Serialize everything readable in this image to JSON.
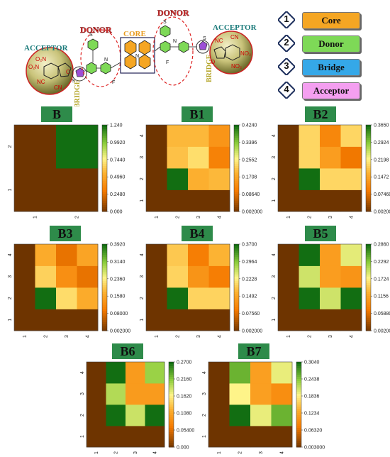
{
  "diagram": {
    "labels": {
      "acceptor_left": "ACCEPTOR",
      "donor_left": "DONOR",
      "core": "CORE",
      "donor_right": "DONOR",
      "acceptor_right": "ACCEPTOR",
      "bridge_left": "BRIDGE",
      "bridge_right": "BRIDGE"
    },
    "atoms": {
      "left_no2_a": "O₂N",
      "left_no2_b": "O₂N",
      "left_nc": "NC",
      "left_cn": "CN",
      "left_o": "O",
      "right_nc": "NC",
      "right_cn": "CN",
      "right_no2_a": "NO₂",
      "right_no2_b": "NO₂",
      "right_o": "O",
      "s_left": "S",
      "s_right": "S",
      "s_bridge_left": "S",
      "s_bridge_right": "S",
      "n_left": "N",
      "n_right": "N",
      "n_core": "N",
      "f_left": "F",
      "f_right": "F"
    }
  },
  "legend": [
    {
      "num": "1",
      "label": "Core",
      "color": "#f5a623"
    },
    {
      "num": "2",
      "label": "Donor",
      "color": "#7ed957"
    },
    {
      "num": "3",
      "label": "Bridge",
      "color": "#35a8e8"
    },
    {
      "num": "4",
      "label": "Acceptor",
      "color": "#f49ff0"
    }
  ],
  "chart_data": [
    {
      "type": "heatmap",
      "title": "B",
      "n": 2,
      "xticks": [
        "1",
        "2"
      ],
      "yticks": [
        "1",
        "2"
      ],
      "colorbar": [
        "1.240",
        "0.9920",
        "0.7440",
        "0.4960",
        "0.2480",
        "0.000"
      ],
      "range": [
        0,
        1.24
      ],
      "values": [
        [
          0,
          0
        ],
        [
          0,
          1.24
        ]
      ]
    },
    {
      "type": "heatmap",
      "title": "B1",
      "n": 4,
      "xticks": [
        "1",
        "2",
        "3",
        "4"
      ],
      "yticks": [
        "1",
        "2",
        "3",
        "4"
      ],
      "colorbar": [
        "0.4240",
        "0.3396",
        "0.2552",
        "0.1708",
        "0.08640",
        "0.002000"
      ],
      "range": [
        0.002,
        0.424
      ],
      "values": [
        [
          0.002,
          0.002,
          0.002,
          0.002
        ],
        [
          0.002,
          0.424,
          0.19,
          0.2
        ],
        [
          0.002,
          0.21,
          0.24,
          0.12
        ],
        [
          0.002,
          0.2,
          0.2,
          0.15
        ]
      ]
    },
    {
      "type": "heatmap",
      "title": "B2",
      "n": 4,
      "xticks": [
        "1",
        "2",
        "3",
        "4"
      ],
      "yticks": [
        "1",
        "2",
        "3",
        "4"
      ],
      "colorbar": [
        "0.3650",
        "0.2924",
        "0.2198",
        "0.1472",
        "0.07460",
        "0.002000"
      ],
      "range": [
        0.002,
        0.365
      ],
      "values": [
        [
          0.002,
          0.002,
          0.002,
          0.002
        ],
        [
          0.002,
          0.365,
          0.2,
          0.2
        ],
        [
          0.002,
          0.2,
          0.14,
          0.09
        ],
        [
          0.002,
          0.2,
          0.11,
          0.2
        ]
      ]
    },
    {
      "type": "heatmap",
      "title": "B3",
      "n": 4,
      "xticks": [
        "1",
        "2",
        "3",
        "4"
      ],
      "yticks": [
        "1",
        "2",
        "3",
        "4"
      ],
      "colorbar": [
        "0.3920",
        "0.3140",
        "0.2360",
        "0.1580",
        "0.08000",
        "0.002000"
      ],
      "range": [
        0.002,
        0.392
      ],
      "values": [
        [
          0.002,
          0.002,
          0.002,
          0.002
        ],
        [
          0.002,
          0.392,
          0.22,
          0.17
        ],
        [
          0.002,
          0.21,
          0.13,
          0.09
        ],
        [
          0.002,
          0.17,
          0.09,
          0.16
        ]
      ]
    },
    {
      "type": "heatmap",
      "title": "B4",
      "n": 4,
      "xticks": [
        "1",
        "2",
        "3",
        "4"
      ],
      "yticks": [
        "1",
        "2",
        "3",
        "4"
      ],
      "colorbar": [
        "0.3700",
        "0.2964",
        "0.2228",
        "0.1492",
        "0.07560",
        "0.002000"
      ],
      "range": [
        0.002,
        0.37
      ],
      "values": [
        [
          0.002,
          0.002,
          0.002,
          0.002
        ],
        [
          0.002,
          0.37,
          0.2,
          0.2
        ],
        [
          0.002,
          0.2,
          0.13,
          0.1
        ],
        [
          0.002,
          0.19,
          0.1,
          0.17
        ]
      ]
    },
    {
      "type": "heatmap",
      "title": "B5",
      "n": 4,
      "xticks": [
        "1",
        "2",
        "3",
        "4"
      ],
      "yticks": [
        "1",
        "2",
        "3",
        "4"
      ],
      "colorbar": [
        "0.2860",
        "0.2292",
        "0.1724",
        "0.1156",
        "0.05880",
        "0.002000"
      ],
      "range": [
        0.002,
        0.286
      ],
      "values": [
        [
          0.002,
          0.002,
          0.002,
          0.002
        ],
        [
          0.002,
          0.286,
          0.2,
          0.286
        ],
        [
          0.002,
          0.2,
          0.11,
          0.1
        ],
        [
          0.002,
          0.286,
          0.11,
          0.19
        ]
      ]
    },
    {
      "type": "heatmap",
      "title": "B6",
      "n": 4,
      "xticks": [
        "1",
        "2",
        "3",
        "4"
      ],
      "yticks": [
        "1",
        "2",
        "3",
        "4"
      ],
      "colorbar": [
        "0.2700",
        "0.2160",
        "0.1620",
        "0.1080",
        "0.05400",
        "0.000"
      ],
      "range": [
        0,
        0.27
      ],
      "values": [
        [
          0,
          0,
          0,
          0
        ],
        [
          0,
          0.27,
          0.19,
          0.27
        ],
        [
          0,
          0.2,
          0.1,
          0.1
        ],
        [
          0,
          0.27,
          0.1,
          0.21
        ]
      ]
    },
    {
      "type": "heatmap",
      "title": "B7",
      "n": 4,
      "xticks": [
        "1",
        "2",
        "3",
        "4"
      ],
      "yticks": [
        "1",
        "2",
        "3",
        "4"
      ],
      "colorbar": [
        "0.3040",
        "0.2438",
        "0.1836",
        "0.1234",
        "0.06320",
        "0.003000"
      ],
      "range": [
        0.003,
        0.304
      ],
      "values": [
        [
          0.003,
          0.003,
          0.003,
          0.003
        ],
        [
          0.003,
          0.304,
          0.2,
          0.26
        ],
        [
          0.003,
          0.19,
          0.12,
          0.1
        ],
        [
          0.003,
          0.26,
          0.12,
          0.2
        ]
      ]
    }
  ]
}
